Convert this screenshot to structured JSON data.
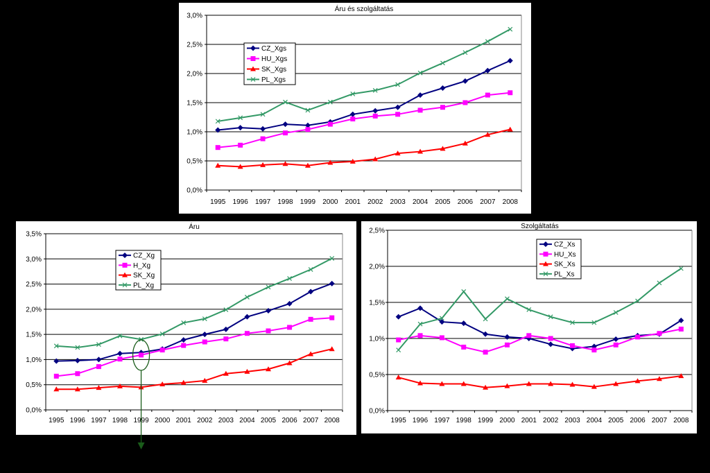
{
  "colors": {
    "background": "#000000",
    "panel": "#ffffff",
    "gridline": "#000000",
    "CZ": "#000080",
    "HU": "#ff00ff",
    "SK": "#ff0000",
    "PL": "#339966",
    "annotation": "#1a5c1a"
  },
  "chart_data": [
    {
      "type": "line",
      "title": "Áru és szolgáltatás",
      "x": [
        1995,
        1996,
        1997,
        1998,
        1999,
        2000,
        2001,
        2002,
        2003,
        2004,
        2005,
        2006,
        2007,
        2008
      ],
      "ylim": [
        0,
        3.0
      ],
      "yticks": [
        "0,0%",
        "0,5%",
        "1,0%",
        "1,5%",
        "2,0%",
        "2,5%",
        "3,0%"
      ],
      "grid": true,
      "legend_position": "top-left",
      "series": [
        {
          "name": "CZ_Xgs",
          "key": "CZ",
          "marker": "diamond",
          "values": [
            1.03,
            1.07,
            1.05,
            1.13,
            1.11,
            1.17,
            1.3,
            1.36,
            1.42,
            1.63,
            1.75,
            1.87,
            2.05,
            2.22
          ]
        },
        {
          "name": "HU_Xgs",
          "key": "HU",
          "marker": "square",
          "values": [
            0.73,
            0.77,
            0.88,
            0.98,
            1.04,
            1.13,
            1.22,
            1.27,
            1.3,
            1.37,
            1.42,
            1.5,
            1.63,
            1.67
          ]
        },
        {
          "name": "SK_Xgs",
          "key": "SK",
          "marker": "triangle",
          "values": [
            0.42,
            0.4,
            0.43,
            0.45,
            0.42,
            0.47,
            0.49,
            0.53,
            0.63,
            0.66,
            0.71,
            0.8,
            0.95,
            1.04
          ]
        },
        {
          "name": "PL_Xgs",
          "key": "PL",
          "marker": "x",
          "values": [
            1.18,
            1.24,
            1.3,
            1.51,
            1.37,
            1.51,
            1.65,
            1.71,
            1.81,
            2.01,
            2.18,
            2.36,
            2.55,
            2.76
          ]
        }
      ]
    },
    {
      "type": "line",
      "title": "Áru",
      "x": [
        1995,
        1996,
        1997,
        1998,
        1999,
        2000,
        2001,
        2002,
        2003,
        2004,
        2005,
        2006,
        2007,
        2008
      ],
      "ylim": [
        0,
        3.5
      ],
      "yticks": [
        "0,0%",
        "0,5%",
        "1,0%",
        "1,5%",
        "2,0%",
        "2,5%",
        "3,0%",
        "3,5%"
      ],
      "grid": true,
      "legend_position": "top-left",
      "series": [
        {
          "name": "CZ_Xg",
          "key": "CZ",
          "marker": "diamond",
          "values": [
            0.97,
            0.98,
            1.0,
            1.12,
            1.14,
            1.21,
            1.39,
            1.5,
            1.6,
            1.85,
            1.97,
            2.11,
            2.35,
            2.51
          ]
        },
        {
          "name": "H_Xg",
          "key": "HU",
          "marker": "square",
          "values": [
            0.67,
            0.72,
            0.86,
            1.01,
            1.09,
            1.19,
            1.28,
            1.35,
            1.41,
            1.52,
            1.57,
            1.64,
            1.8,
            1.83
          ]
        },
        {
          "name": "SK_Xg",
          "key": "SK",
          "marker": "triangle",
          "values": [
            0.41,
            0.41,
            0.44,
            0.47,
            0.45,
            0.51,
            0.54,
            0.58,
            0.72,
            0.76,
            0.81,
            0.93,
            1.11,
            1.21
          ]
        },
        {
          "name": "PL_Xg",
          "key": "PL",
          "marker": "x",
          "values": [
            1.27,
            1.24,
            1.3,
            1.47,
            1.4,
            1.51,
            1.73,
            1.81,
            1.99,
            2.24,
            2.44,
            2.61,
            2.79,
            3.01
          ]
        }
      ]
    },
    {
      "type": "line",
      "title": "Szolgáltatás",
      "x": [
        1995,
        1996,
        1997,
        1998,
        1999,
        2000,
        2001,
        2002,
        2003,
        2004,
        2005,
        2006,
        2007,
        2008
      ],
      "ylim": [
        0,
        2.5
      ],
      "yticks": [
        "0,0%",
        "0,5%",
        "1,0%",
        "1,5%",
        "2,0%",
        "2,5%"
      ],
      "grid": true,
      "legend_position": "top-right",
      "series": [
        {
          "name": "CZ_Xs",
          "key": "CZ",
          "marker": "diamond",
          "values": [
            1.3,
            1.42,
            1.23,
            1.21,
            1.06,
            1.02,
            1.0,
            0.92,
            0.86,
            0.89,
            0.99,
            1.04,
            1.06,
            1.25
          ]
        },
        {
          "name": "HU_Xs",
          "key": "HU",
          "marker": "square",
          "values": [
            0.98,
            1.04,
            1.01,
            0.88,
            0.81,
            0.91,
            1.04,
            1.0,
            0.9,
            0.84,
            0.91,
            1.02,
            1.07,
            1.13
          ]
        },
        {
          "name": "SK_Xs",
          "key": "SK",
          "marker": "triangle",
          "values": [
            0.46,
            0.38,
            0.37,
            0.37,
            0.32,
            0.34,
            0.37,
            0.37,
            0.36,
            0.33,
            0.37,
            0.41,
            0.44,
            0.48
          ]
        },
        {
          "name": "PL_Xs",
          "key": "PL",
          "marker": "x",
          "values": [
            0.84,
            1.2,
            1.28,
            1.65,
            1.27,
            1.55,
            1.4,
            1.3,
            1.22,
            1.22,
            1.36,
            1.52,
            1.77,
            1.97
          ]
        }
      ]
    }
  ]
}
